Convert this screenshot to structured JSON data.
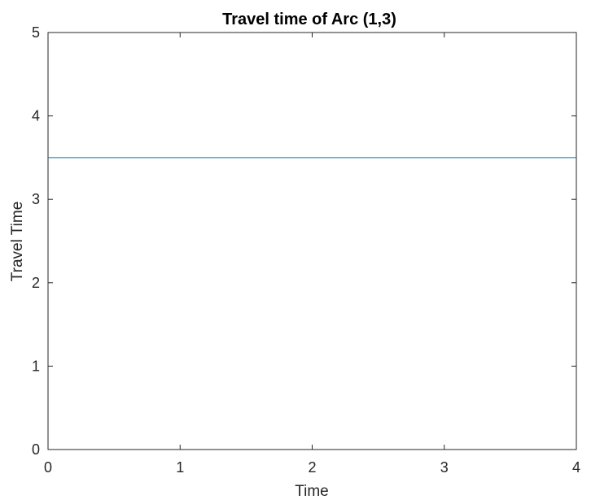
{
  "chart_data": {
    "type": "line",
    "title": "Travel time of Arc (1,3)",
    "xlabel": "Time",
    "ylabel": "Travel Time",
    "xlim": [
      0,
      4
    ],
    "ylim": [
      0,
      5
    ],
    "xticks": [
      "0",
      "1",
      "2",
      "3",
      "4"
    ],
    "yticks": [
      "0",
      "1",
      "2",
      "3",
      "4",
      "5"
    ],
    "grid": false,
    "series": [
      {
        "x": [
          0,
          4
        ],
        "y": [
          3.5,
          3.5
        ],
        "color": "#0072BD"
      }
    ]
  }
}
